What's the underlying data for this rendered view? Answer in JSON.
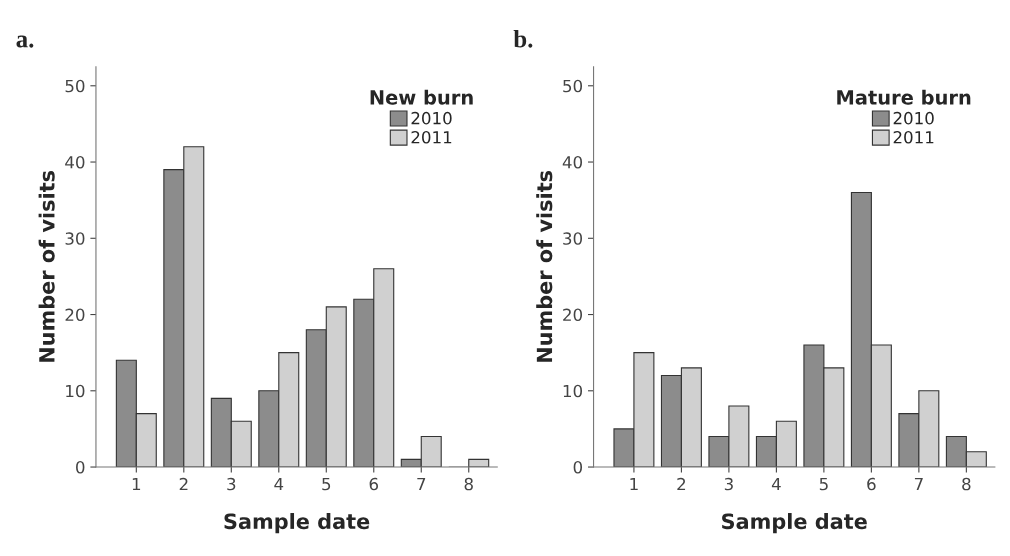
{
  "chart_data": [
    {
      "type": "bar",
      "title": "a.",
      "xlabel": "Sample date",
      "ylabel": "Number of visits",
      "legend_title": "New burn",
      "legend": "top right",
      "categories": [
        "1",
        "2",
        "3",
        "4",
        "5",
        "6",
        "7",
        "8"
      ],
      "series": [
        {
          "name": "2010",
          "color": "#8c8c8c",
          "values": [
            14,
            39,
            9,
            10,
            18,
            22,
            1,
            0
          ]
        },
        {
          "name": "2011",
          "color": "#d0d0d0",
          "values": [
            7,
            42,
            6,
            15,
            21,
            26,
            4,
            1
          ]
        }
      ],
      "ylim": [
        0,
        52.5
      ],
      "yticks": [
        0,
        10,
        20,
        30,
        40,
        50
      ],
      "grid": false
    },
    {
      "type": "bar",
      "title": "b.",
      "xlabel": "Sample date",
      "ylabel": "Number of visits",
      "legend_title": "Mature burn",
      "legend": "top right",
      "categories": [
        "1",
        "2",
        "3",
        "4",
        "5",
        "6",
        "7",
        "8"
      ],
      "series": [
        {
          "name": "2010",
          "color": "#8c8c8c",
          "values": [
            5,
            12,
            4,
            4,
            16,
            36,
            7,
            4
          ]
        },
        {
          "name": "2011",
          "color": "#d0d0d0",
          "values": [
            15,
            13,
            8,
            6,
            13,
            16,
            10,
            2
          ]
        }
      ],
      "ylim": [
        0,
        52.5
      ],
      "yticks": [
        0,
        10,
        20,
        30,
        40,
        50
      ],
      "grid": false
    }
  ]
}
